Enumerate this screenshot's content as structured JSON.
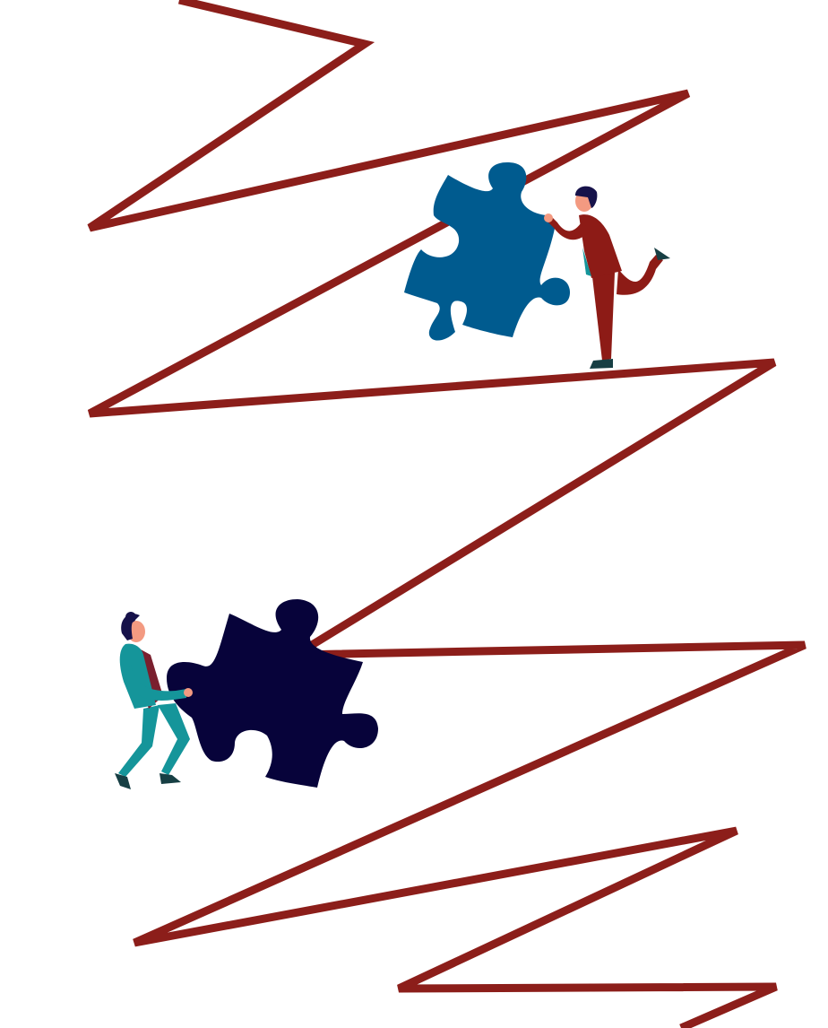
{
  "colors": {
    "background": "#ffffff",
    "zigzag": "#8c1e1a",
    "puzzle_top": "#005b8f",
    "puzzle_bottom": "#07033a",
    "person_top_suit": "#8d1b16",
    "person_bottom_suit": "#15959a",
    "skin": "#f39a81",
    "hair": "#16124a",
    "shoe": "#173f44"
  },
  "icons": [
    "zigzag-line",
    "puzzle-piece-icon",
    "person-figure-icon"
  ]
}
